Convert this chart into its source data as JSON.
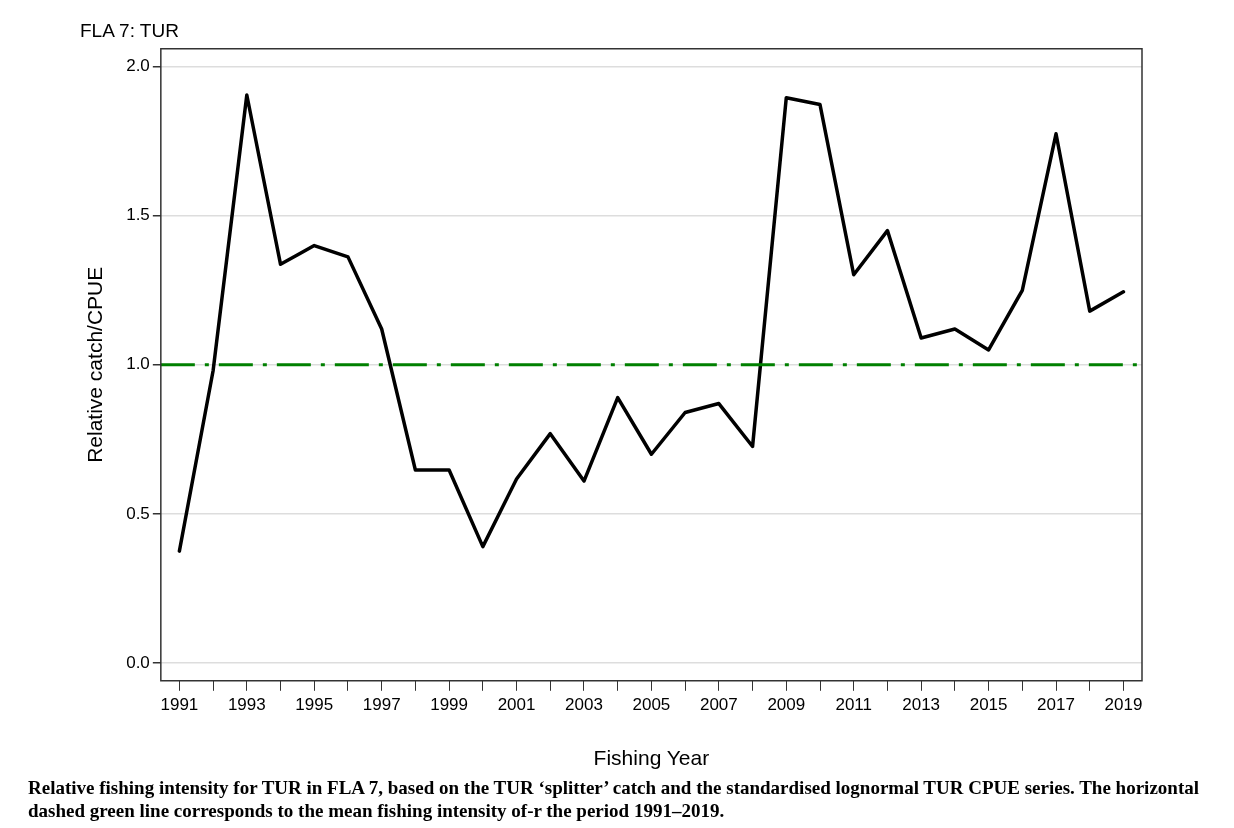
{
  "chart_data": {
    "type": "line",
    "title": "FLA 7: TUR",
    "xlabel": "Fishing Year",
    "ylabel": "Relative catch/CPUE",
    "x": [
      1991,
      1992,
      1993,
      1994,
      1995,
      1996,
      1997,
      1998,
      1999,
      2000,
      2001,
      2002,
      2003,
      2004,
      2005,
      2006,
      2007,
      2008,
      2009,
      2010,
      2011,
      2012,
      2013,
      2014,
      2015,
      2016,
      2017,
      2018,
      2019
    ],
    "series": [
      {
        "color": "#000000",
        "values": [
          0.375,
          0.98,
          1.905,
          1.337,
          1.4,
          1.362,
          1.12,
          0.647,
          0.647,
          0.39,
          0.617,
          0.769,
          0.61,
          0.89,
          0.7,
          0.84,
          0.87,
          0.726,
          1.896,
          1.873,
          1.302,
          1.45,
          1.09,
          1.12,
          1.05,
          1.25,
          1.775,
          1.18,
          1.245
        ]
      }
    ],
    "xlim": [
      1990.45,
      2019.55
    ],
    "xticks": [
      1991,
      {
        "value": 1992,
        "label": null
      },
      1993,
      {
        "value": 1994,
        "label": null
      },
      1995,
      {
        "value": 1996,
        "label": null
      },
      1997,
      {
        "value": 1998,
        "label": null
      },
      1999,
      {
        "value": 2000,
        "label": null
      },
      2001,
      {
        "value": 2002,
        "label": null
      },
      2003,
      {
        "value": 2004,
        "label": null
      },
      2005,
      {
        "value": 2006,
        "label": null
      },
      2007,
      {
        "value": 2008,
        "label": null
      },
      2009,
      {
        "value": 2010,
        "label": null
      },
      2011,
      {
        "value": 2012,
        "label": null
      },
      2013,
      {
        "value": 2014,
        "label": null
      },
      2015,
      {
        "value": 2016,
        "label": null
      },
      2017,
      {
        "value": 2018,
        "label": null
      },
      2019
    ],
    "ylim": [
      -0.06,
      2.06
    ],
    "yticks": [
      {
        "value": 0,
        "label": "0.0"
      },
      {
        "value": 0.5,
        "label": "0.5"
      },
      {
        "value": 1,
        "label": "1.0"
      },
      {
        "value": 1.5,
        "label": "1.5"
      },
      {
        "value": 2,
        "label": "2.0"
      }
    ],
    "grid": "y",
    "legend": false,
    "marker": "none",
    "line_style": "solid",
    "ref_lines": [
      {
        "axis": "y",
        "value": 1,
        "color": "#008000",
        "line_style": "dashed"
      }
    ],
    "annotations": [
      "Relative fishing intensity for TUR in FLA 7, based on the TUR ‘splitter’ catch and the standardised lognormal TUR CPUE series. The horizontal dashed green line corresponds to the mean fishing intensity of-r the period 1991–2019."
    ]
  }
}
